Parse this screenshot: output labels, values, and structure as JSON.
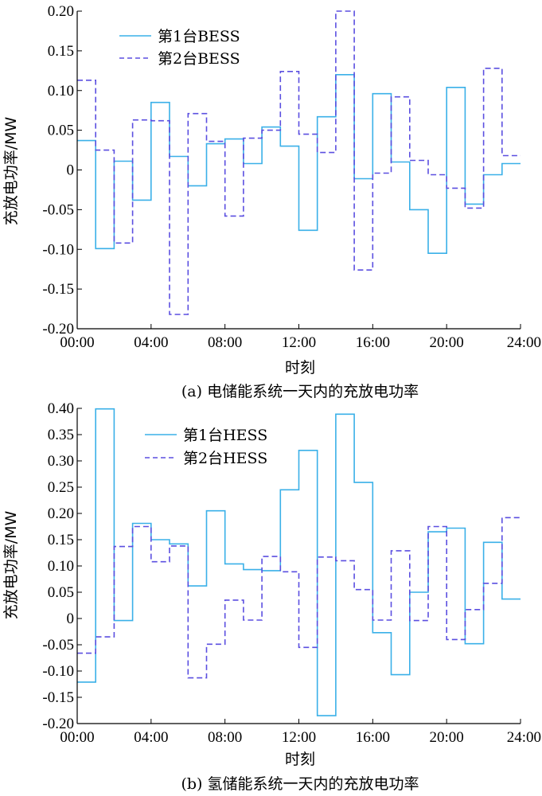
{
  "chart_data": [
    {
      "type": "line",
      "step": true,
      "xlabel": "时刻",
      "ylabel": "充放电功率/MW",
      "caption": "(a) 电储能系统一天内的充放电功率",
      "x_ticks": [
        "00:00",
        "04:00",
        "08:00",
        "12:00",
        "16:00",
        "20:00",
        "24:00"
      ],
      "x_range_hours": [
        0,
        24
      ],
      "y_ticks": [
        "0.20",
        "0.15",
        "0.10",
        "0.05",
        "0",
        "-0.05",
        "-0.10",
        "-0.15",
        "-0.20"
      ],
      "ylim": [
        -0.2,
        0.2
      ],
      "legend_position": "top-left",
      "series": [
        {
          "name": "第1台BESS",
          "style": "solid",
          "color": "#3ab0e8",
          "values": [
            0.037,
            -0.099,
            0.011,
            -0.038,
            0.085,
            0.017,
            -0.02,
            0.033,
            0.039,
            0.008,
            0.054,
            0.03,
            -0.076,
            0.067,
            0.12,
            -0.011,
            0.096,
            0.01,
            -0.05,
            -0.105,
            0.104,
            -0.043,
            -0.006,
            0.008
          ]
        },
        {
          "name": "第2台BESS",
          "style": "dashed",
          "color": "#5b4fe0",
          "values": [
            0.113,
            0.025,
            -0.092,
            0.063,
            0.062,
            -0.182,
            0.071,
            0.036,
            -0.058,
            0.04,
            0.05,
            0.124,
            0.045,
            0.022,
            0.2,
            -0.126,
            -0.004,
            0.092,
            0.012,
            -0.006,
            -0.023,
            -0.048,
            0.128,
            0.018
          ]
        }
      ]
    },
    {
      "type": "line",
      "step": true,
      "xlabel": "时刻",
      "ylabel": "充放电功率/MW",
      "caption": "(b) 氢储能系统一天内的充放电功率",
      "x_ticks": [
        "00:00",
        "04:00",
        "08:00",
        "12:00",
        "16:00",
        "20:00",
        "24:00"
      ],
      "x_range_hours": [
        0,
        24
      ],
      "y_ticks": [
        "0.40",
        "0.35",
        "0.30",
        "0.25",
        "0.20",
        "0.15",
        "0.10",
        "0.05",
        "0",
        "-0.05",
        "-0.10",
        "-0.15",
        "-0.20"
      ],
      "ylim": [
        -0.2,
        0.4
      ],
      "legend_position": "top-center",
      "series": [
        {
          "name": "第1台HESS",
          "style": "solid",
          "color": "#3ab0e8",
          "values": [
            -0.121,
            0.399,
            -0.004,
            0.181,
            0.15,
            0.142,
            0.062,
            0.205,
            0.104,
            0.093,
            0.091,
            0.245,
            0.32,
            -0.185,
            0.389,
            0.259,
            -0.027,
            -0.107,
            0.05,
            0.165,
            0.172,
            -0.048,
            0.145,
            0.037
          ]
        },
        {
          "name": "第2台HESS",
          "style": "dashed",
          "color": "#5b4fe0",
          "values": [
            -0.066,
            -0.035,
            0.137,
            0.175,
            0.108,
            0.138,
            -0.113,
            -0.049,
            0.035,
            -0.003,
            0.118,
            0.089,
            -0.055,
            0.117,
            0.11,
            0.055,
            -0.003,
            0.129,
            -0.004,
            0.175,
            -0.04,
            0.017,
            0.067,
            0.192
          ]
        }
      ]
    }
  ]
}
